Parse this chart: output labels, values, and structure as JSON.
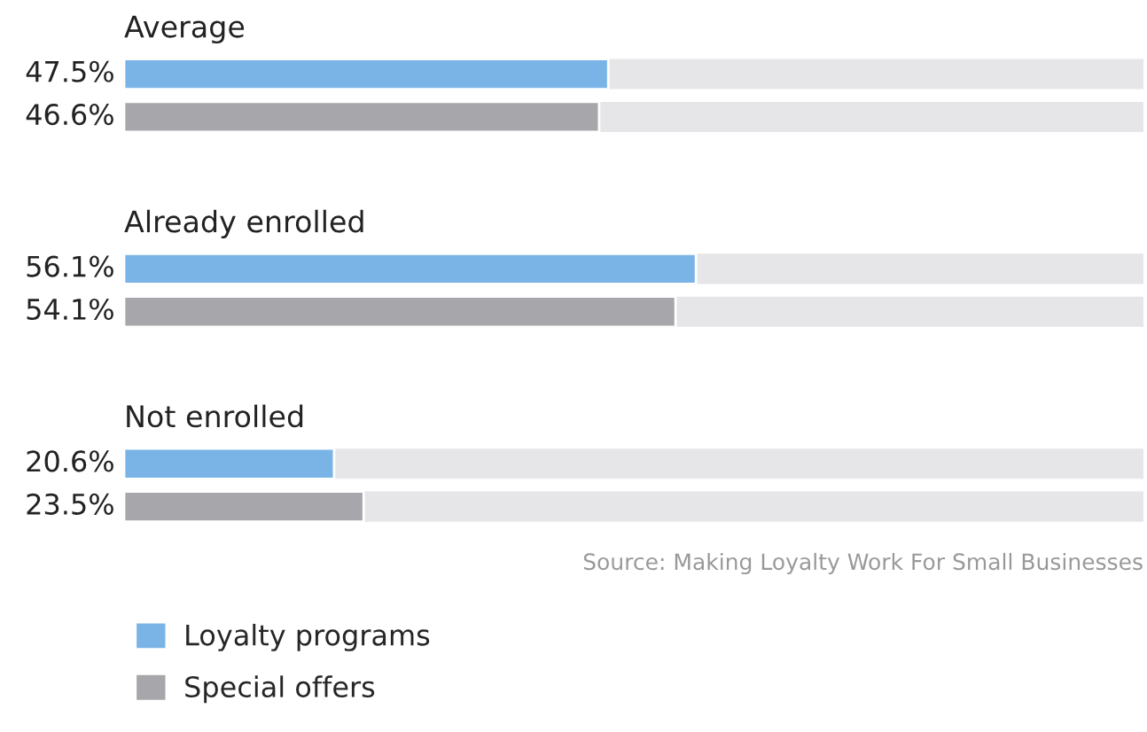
{
  "chart_data": {
    "type": "bar",
    "orientation": "horizontal",
    "categories": [
      "Average",
      "Already enrolled",
      "Not enrolled"
    ],
    "series": [
      {
        "name": "Loyalty programs",
        "color": "#7ab4e6",
        "values": [
          47.5,
          56.1,
          20.6
        ],
        "value_labels": [
          "47.5%",
          "56.1%",
          "20.6%"
        ]
      },
      {
        "name": "Special offers",
        "color": "#a7a6aa",
        "values": [
          46.6,
          54.1,
          23.5
        ],
        "value_labels": [
          "46.6%",
          "54.1%",
          "23.5%"
        ]
      }
    ],
    "xlim": [
      0,
      100
    ],
    "legend": "bottom left",
    "annotations": [
      "Source: Making Loyalty Work For Small Businesses"
    ]
  }
}
